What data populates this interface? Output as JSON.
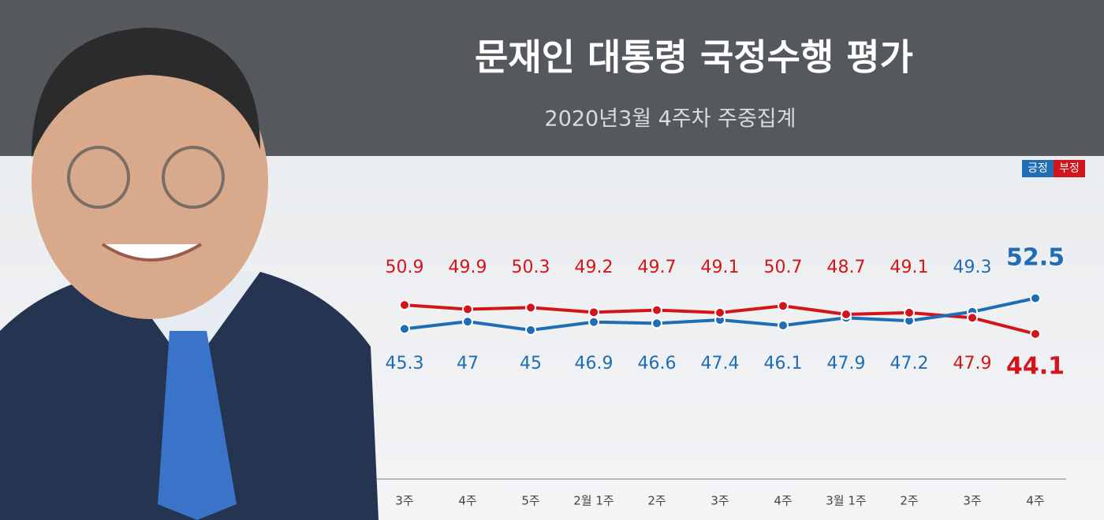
{
  "chart_data": {
    "type": "line",
    "title": "문재인 대통령 국정수행 평가",
    "subtitle": "2020년3월 4주차 주중집계",
    "categories": [
      "3주",
      "4주",
      "5주",
      "2월 1주",
      "2주",
      "3주",
      "4주",
      "3월 1주",
      "2주",
      "3주",
      "4주"
    ],
    "series": [
      {
        "name": "긍정",
        "color": "#1f6db5",
        "values": [
          45.3,
          47.0,
          45.0,
          46.9,
          46.6,
          47.4,
          46.1,
          47.9,
          47.2,
          49.3,
          52.5
        ]
      },
      {
        "name": "부정",
        "color": "#d3141b",
        "values": [
          50.9,
          49.9,
          50.3,
          49.2,
          49.7,
          49.1,
          50.7,
          48.7,
          49.1,
          47.9,
          44.1
        ]
      }
    ],
    "ylim": [
      40,
      55
    ],
    "legend": "top-right"
  }
}
